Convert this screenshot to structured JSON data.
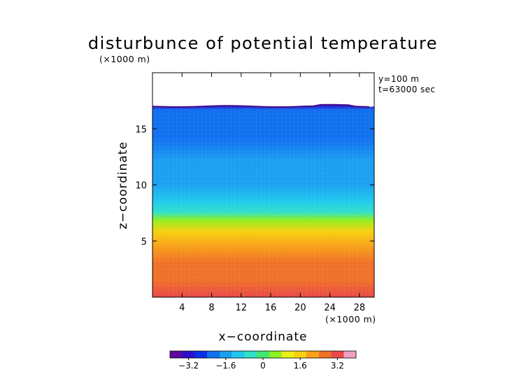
{
  "chart_data": {
    "type": "heatmap",
    "title": "disturbunce of potential temperature",
    "y_unit_label": "(×1000 m)",
    "x_unit_label": "(×1000 m)",
    "xlabel": "x−coordinate",
    "ylabel": "z−coordinate",
    "annotations": [
      "y=100 m",
      "t=63000 sec"
    ],
    "xlim": [
      0,
      30
    ],
    "ylim": [
      0,
      20
    ],
    "x_ticks": [
      4,
      8,
      12,
      16,
      20,
      24,
      28
    ],
    "x_tick_labels": [
      "4",
      "8",
      "12",
      "16",
      "20",
      "24",
      "28"
    ],
    "y_ticks": [
      5,
      10,
      15
    ],
    "y_tick_labels": [
      "5",
      "10",
      "15"
    ],
    "colorbar": {
      "range": [
        -4,
        4
      ],
      "ticks": [
        -3.2,
        -1.6,
        0,
        1.6,
        3.2
      ],
      "tick_labels": [
        "−3.2",
        "−1.6",
        "0",
        "1.6",
        "3.2"
      ],
      "colors": [
        "#5b0a9e",
        "#2a10c8",
        "#0a30e8",
        "#1070f0",
        "#1aa0f0",
        "#20c8ee",
        "#30e0c8",
        "#40e870",
        "#90f020",
        "#e8f018",
        "#f8d010",
        "#f8a018",
        "#f07028",
        "#e84848",
        "#f0a0c0"
      ]
    },
    "profile_z": [
      0,
      1.5,
      3,
      4.5,
      5.8,
      6.8,
      7.5,
      8.5,
      10,
      12,
      14,
      15.5,
      16.5,
      17
    ],
    "profile_value": [
      3.2,
      2.8,
      2.4,
      2.0,
      1.4,
      0.6,
      -0.8,
      -1.3,
      -1.6,
      -1.8,
      -2.0,
      -2.1,
      -2.4,
      -3.4
    ],
    "top_boundary_z": 17,
    "empty_above_label": ""
  }
}
